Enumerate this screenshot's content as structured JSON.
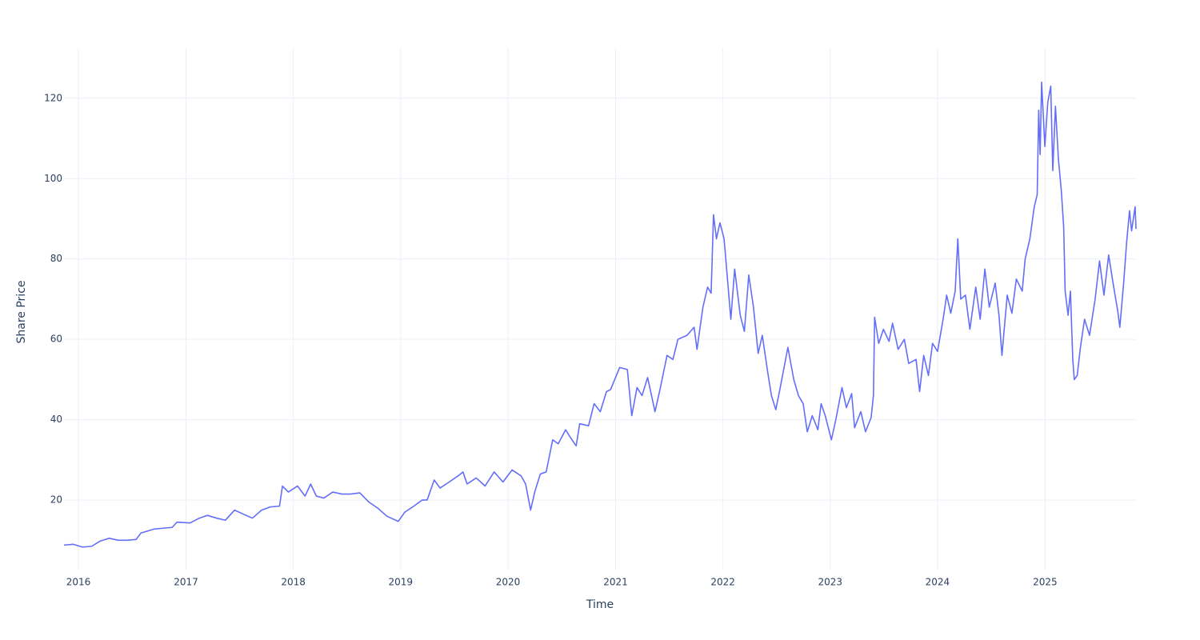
{
  "chart_data": {
    "type": "line",
    "xlabel": "Time",
    "ylabel": "Share Price",
    "color": "#636efa",
    "grid": true,
    "xlim": [
      "2015-11-13",
      "2025-11-06"
    ],
    "xticks": [
      {
        "value": "2016-01-01",
        "label": "2016"
      },
      {
        "value": "2017-01-01",
        "label": "2017"
      },
      {
        "value": "2018-01-01",
        "label": "2018"
      },
      {
        "value": "2019-01-01",
        "label": "2019"
      },
      {
        "value": "2020-01-01",
        "label": "2020"
      },
      {
        "value": "2021-01-01",
        "label": "2021"
      },
      {
        "value": "2022-01-01",
        "label": "2022"
      },
      {
        "value": "2023-01-01",
        "label": "2023"
      },
      {
        "value": "2024-01-01",
        "label": "2024"
      },
      {
        "value": "2025-01-01",
        "label": "2025"
      }
    ],
    "ylim": [
      2.7,
      132.5
    ],
    "yticks": [
      20,
      40,
      60,
      80,
      100,
      120
    ],
    "x": [
      "2015-11-13",
      "2015-12-15",
      "2016-01-15",
      "2016-02-15",
      "2016-03-15",
      "2016-04-15",
      "2016-05-15",
      "2016-06-15",
      "2016-07-15",
      "2016-08-01",
      "2016-09-15",
      "2016-10-15",
      "2016-11-15",
      "2016-12-01",
      "2017-01-15",
      "2017-02-15",
      "2017-03-15",
      "2017-04-15",
      "2017-05-15",
      "2017-06-15",
      "2017-07-15",
      "2017-08-15",
      "2017-09-15",
      "2017-10-15",
      "2017-11-15",
      "2017-11-25",
      "2017-12-15",
      "2018-01-15",
      "2018-02-10",
      "2018-03-01",
      "2018-03-20",
      "2018-04-15",
      "2018-05-15",
      "2018-06-15",
      "2018-07-15",
      "2018-08-15",
      "2018-09-15",
      "2018-10-15",
      "2018-11-15",
      "2018-12-24",
      "2019-01-15",
      "2019-02-15",
      "2019-03-15",
      "2019-04-01",
      "2019-04-25",
      "2019-05-15",
      "2019-06-15",
      "2019-07-15",
      "2019-08-01",
      "2019-08-15",
      "2019-09-15",
      "2019-10-15",
      "2019-11-15",
      "2019-12-15",
      "2020-01-15",
      "2020-02-15",
      "2020-03-01",
      "2020-03-18",
      "2020-04-01",
      "2020-04-20",
      "2020-05-10",
      "2020-06-01",
      "2020-06-20",
      "2020-07-15",
      "2020-08-01",
      "2020-08-20",
      "2020-09-01",
      "2020-10-01",
      "2020-10-20",
      "2020-11-10",
      "2020-12-01",
      "2020-12-15",
      "2021-01-15",
      "2021-02-10",
      "2021-02-25",
      "2021-03-15",
      "2021-04-01",
      "2021-04-20",
      "2021-05-15",
      "2021-06-01",
      "2021-06-25",
      "2021-07-15",
      "2021-08-01",
      "2021-09-01",
      "2021-09-25",
      "2021-10-05",
      "2021-10-25",
      "2021-11-10",
      "2021-11-22",
      "2021-11-30",
      "2021-12-10",
      "2021-12-22",
      "2022-01-05",
      "2022-01-20",
      "2022-01-28",
      "2022-02-10",
      "2022-03-01",
      "2022-03-15",
      "2022-03-30",
      "2022-04-15",
      "2022-05-01",
      "2022-05-15",
      "2022-06-01",
      "2022-06-15",
      "2022-06-30",
      "2022-07-15",
      "2022-08-10",
      "2022-08-30",
      "2022-09-15",
      "2022-10-01",
      "2022-10-15",
      "2022-11-01",
      "2022-11-20",
      "2022-12-01",
      "2022-12-15",
      "2023-01-05",
      "2023-01-20",
      "2023-02-10",
      "2023-02-25",
      "2023-03-15",
      "2023-03-25",
      "2023-04-15",
      "2023-05-01",
      "2023-05-20",
      "2023-05-28",
      "2023-06-01",
      "2023-06-15",
      "2023-07-01",
      "2023-07-20",
      "2023-08-01",
      "2023-08-20",
      "2023-09-10",
      "2023-09-25",
      "2023-10-20",
      "2023-11-01",
      "2023-11-15",
      "2023-12-01",
      "2023-12-15",
      "2024-01-01",
      "2024-01-20",
      "2024-02-01",
      "2024-02-15",
      "2024-03-01",
      "2024-03-10",
      "2024-03-20",
      "2024-04-05",
      "2024-04-20",
      "2024-05-10",
      "2024-05-25",
      "2024-06-10",
      "2024-06-25",
      "2024-07-15",
      "2024-07-28",
      "2024-08-07",
      "2024-08-25",
      "2024-09-10",
      "2024-09-25",
      "2024-10-15",
      "2024-10-25",
      "2024-11-10",
      "2024-11-25",
      "2024-12-05",
      "2024-12-10",
      "2024-12-15",
      "2024-12-20",
      "2024-12-31",
      "2025-01-10",
      "2025-01-20",
      "2025-01-27",
      "2025-02-05",
      "2025-02-15",
      "2025-02-25",
      "2025-03-05",
      "2025-03-10",
      "2025-03-20",
      "2025-03-28",
      "2025-04-05",
      "2025-04-10",
      "2025-04-20",
      "2025-05-01",
      "2025-05-15",
      "2025-06-01",
      "2025-06-20",
      "2025-07-05",
      "2025-07-20",
      "2025-08-05",
      "2025-08-20",
      "2025-09-05",
      "2025-09-12",
      "2025-09-25",
      "2025-10-05",
      "2025-10-15",
      "2025-10-22",
      "2025-11-03",
      "2025-11-06"
    ],
    "values": [
      8.8,
      9.0,
      8.3,
      8.5,
      9.8,
      10.5,
      10.0,
      10.0,
      10.2,
      11.8,
      12.8,
      13.0,
      13.2,
      14.5,
      14.3,
      15.5,
      16.2,
      15.5,
      15.0,
      17.5,
      16.5,
      15.5,
      17.5,
      18.3,
      18.5,
      23.5,
      22.0,
      23.5,
      21.0,
      24.0,
      21.0,
      20.5,
      22.0,
      21.5,
      21.5,
      21.8,
      19.5,
      18.0,
      16.0,
      14.7,
      17.0,
      18.5,
      20.0,
      20.0,
      25.0,
      23.0,
      24.5,
      26.0,
      27.0,
      24.0,
      25.5,
      23.5,
      27.0,
      24.5,
      27.5,
      26.0,
      24.0,
      17.5,
      22.0,
      26.5,
      27.0,
      35.0,
      34.0,
      37.5,
      35.5,
      33.5,
      39.0,
      38.5,
      44.0,
      42.0,
      47.0,
      47.5,
      53.0,
      52.5,
      41.0,
      48.0,
      46.0,
      50.5,
      42.0,
      47.5,
      56.0,
      55.0,
      60.0,
      61.0,
      63.0,
      57.5,
      68.0,
      73.0,
      71.5,
      91.0,
      85.0,
      89.0,
      85.0,
      72.0,
      65.0,
      77.5,
      66.0,
      62.0,
      76.0,
      68.0,
      56.5,
      61.0,
      52.5,
      46.0,
      42.5,
      48.0,
      58.0,
      50.0,
      46.0,
      44.0,
      37.0,
      41.0,
      37.5,
      44.0,
      41.0,
      35.0,
      40.0,
      48.0,
      43.0,
      46.5,
      38.0,
      42.0,
      37.0,
      40.5,
      46.0,
      65.5,
      59.0,
      62.5,
      59.5,
      64.0,
      57.5,
      60.0,
      54.0,
      55.0,
      47.0,
      56.0,
      51.0,
      59.0,
      57.0,
      65.0,
      71.0,
      66.5,
      72.0,
      85.0,
      70.0,
      71.0,
      62.5,
      73.0,
      65.0,
      77.5,
      68.0,
      74.0,
      66.0,
      56.0,
      71.0,
      66.5,
      75.0,
      72.0,
      80.0,
      85.0,
      93.0,
      96.0,
      117.0,
      106.0,
      124.0,
      108.0,
      119.0,
      123.0,
      102.0,
      118.0,
      105.0,
      97.0,
      88.0,
      72.0,
      66.0,
      72.0,
      55.0,
      50.0,
      51.0,
      58.0,
      65.0,
      61.0,
      70.0,
      79.5,
      71.0,
      81.0,
      74.0,
      67.0,
      63.0,
      74.0,
      84.0,
      92.0,
      87.0,
      93.0,
      87.5
    ]
  }
}
